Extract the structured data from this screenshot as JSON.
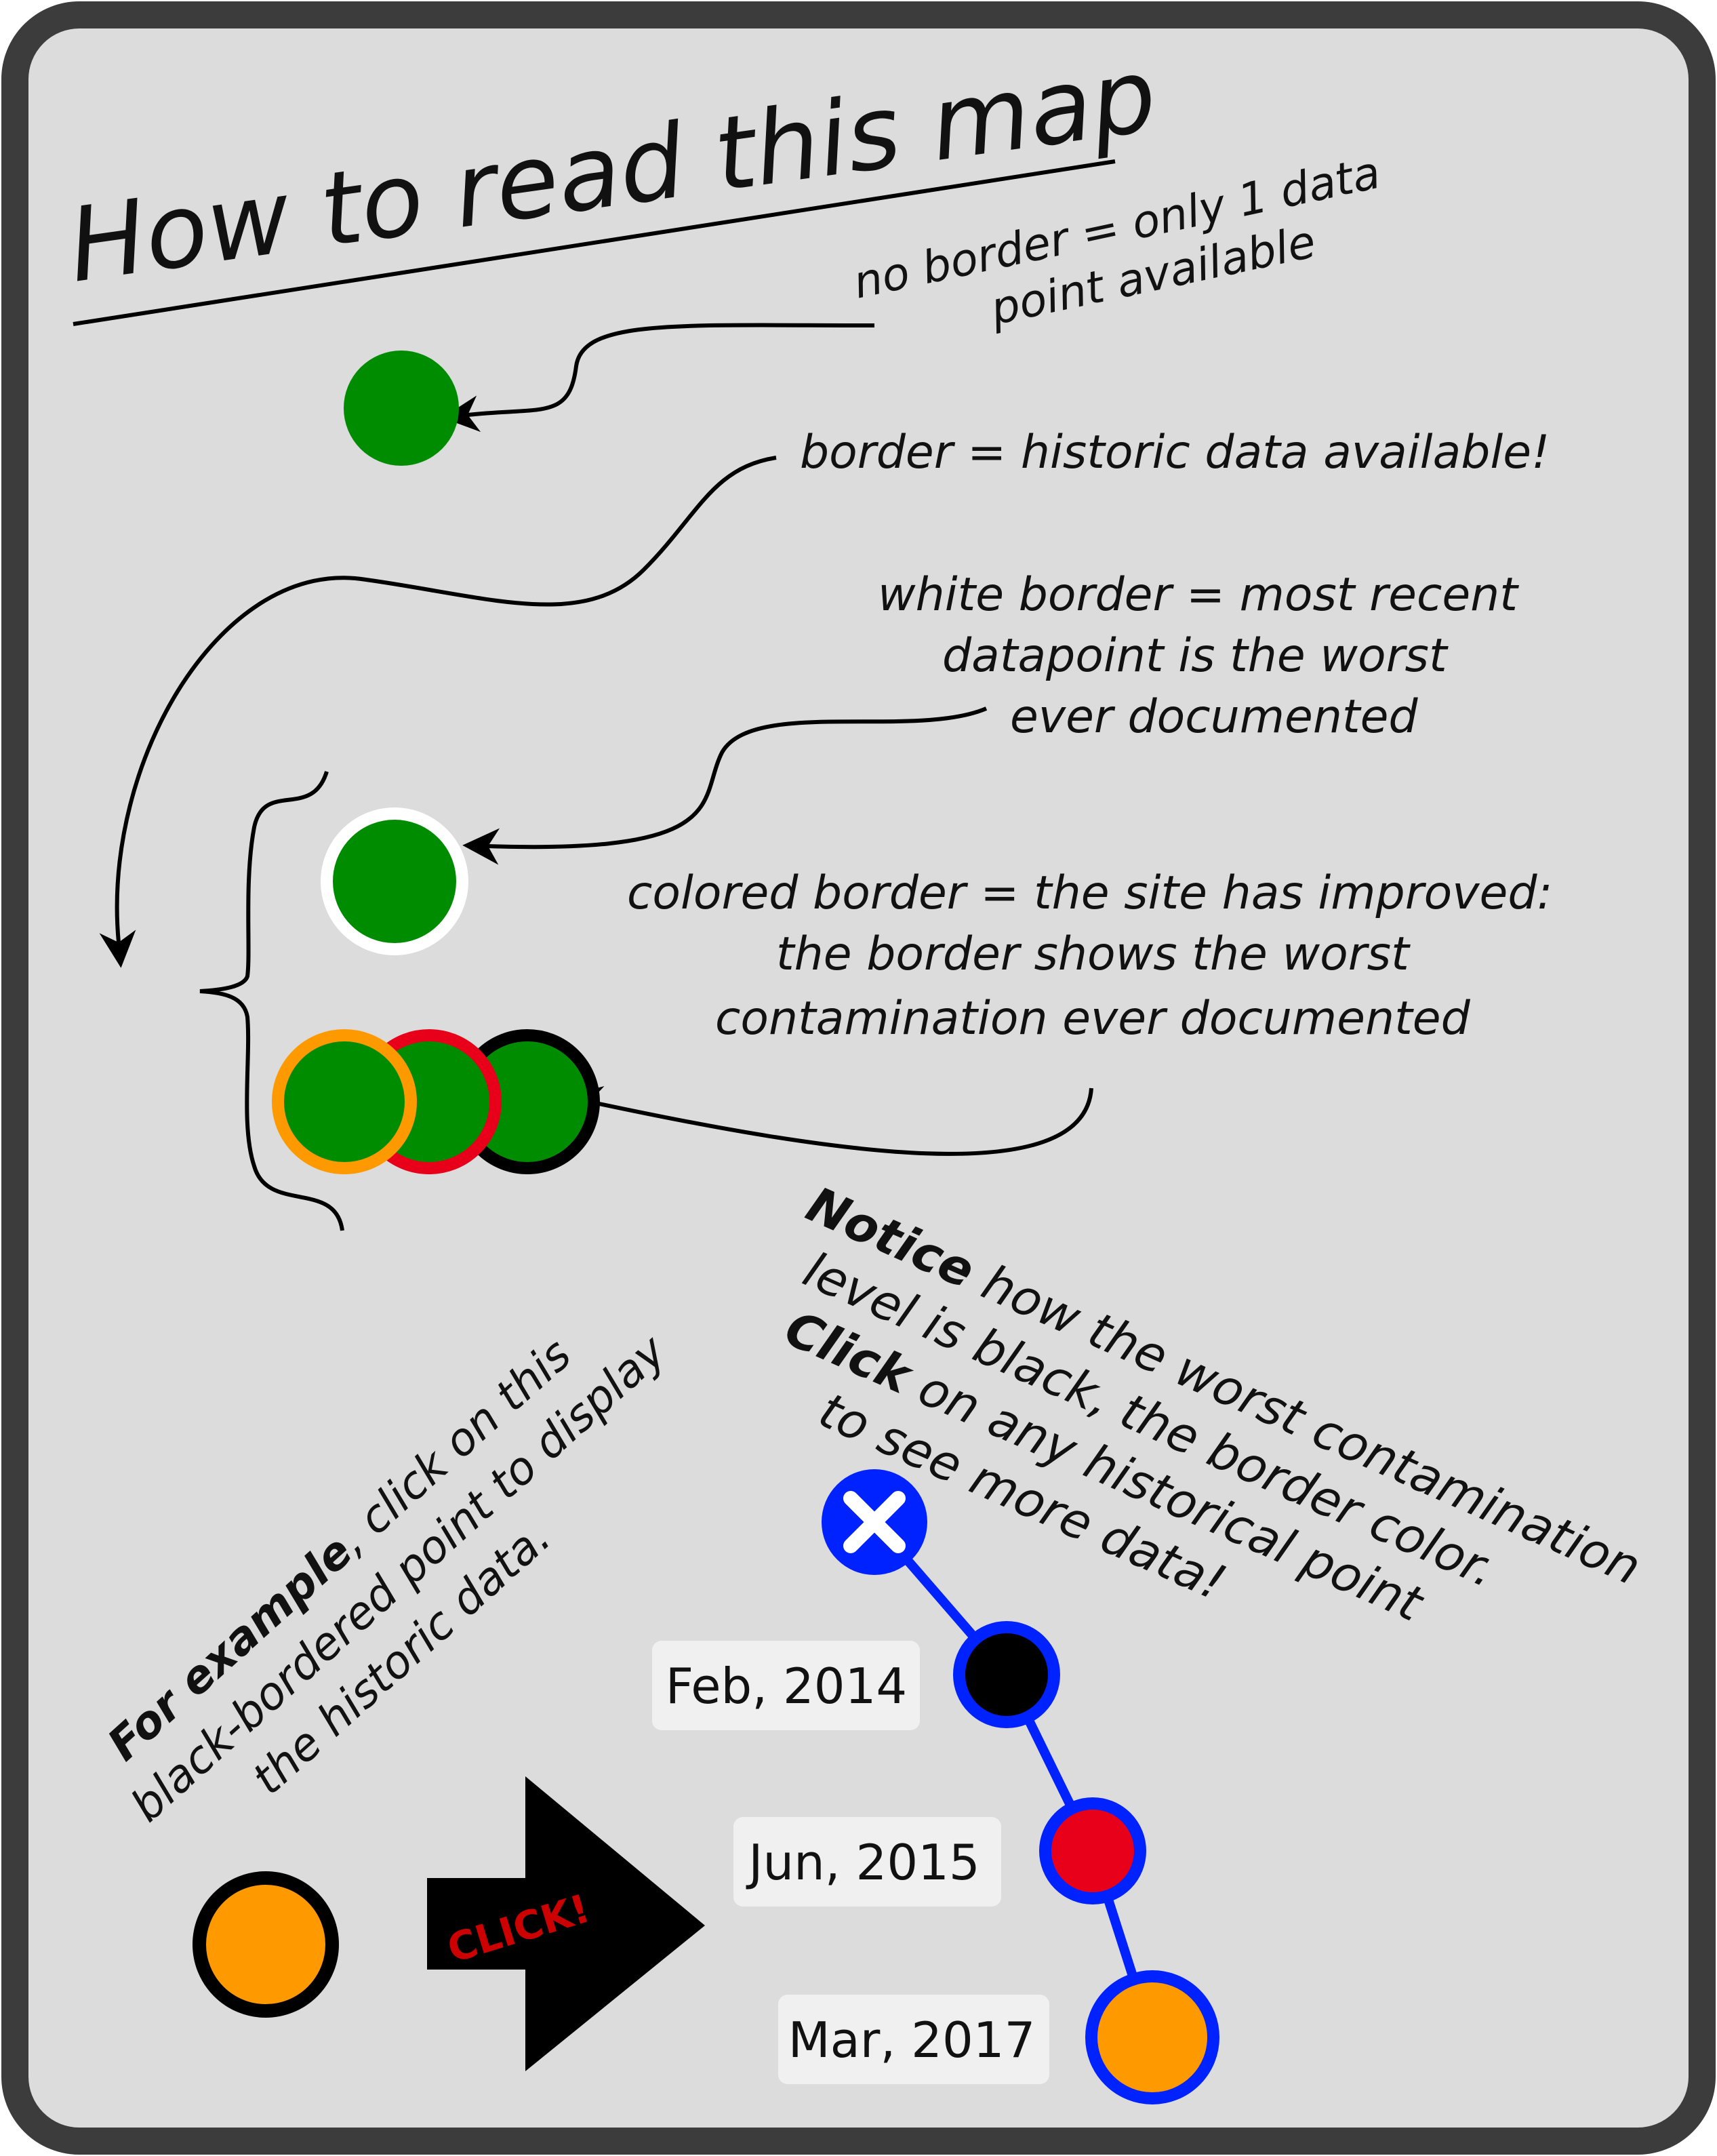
{
  "title": "How to read this map",
  "notes": {
    "no_border": [
      "no border = only 1 data",
      "point available"
    ],
    "border": "border = historic data available!",
    "white_border": [
      "white border = most recent",
      "datapoint is the worst",
      "ever documented"
    ],
    "colored_border": [
      "colored border = the site has improved:",
      "the border shows the worst",
      "contamination ever documented"
    ]
  },
  "notice": {
    "line1_bold": "Notice",
    "line1_rest": " how the worst contamination",
    "line2": "level is black, the border color.",
    "line3_bold": "Click",
    "line3_rest": " on any historical point",
    "line4": "to see more data!"
  },
  "example": {
    "line1_bold": "For example",
    "line1_rest": ", click on this",
    "line2": "black-bordered point to display",
    "line3": "the historic data."
  },
  "click_label": "CLICK!",
  "timeline_dates": [
    "Feb, 2014",
    "Jun, 2015",
    "Mar, 2017"
  ],
  "colors": {
    "green": "#008c00",
    "orange": "#ff9900",
    "red": "#e8001a",
    "black": "#000000",
    "blue": "#0022ff",
    "panel": "#dcdcdc",
    "frame": "#3c3c3c"
  },
  "icons": [
    "close-icon",
    "click-arrow-icon"
  ]
}
